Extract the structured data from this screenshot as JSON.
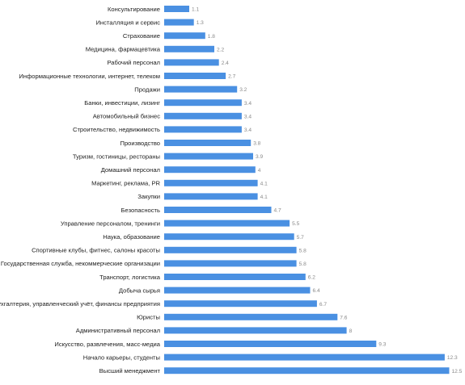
{
  "chart_data": {
    "type": "bar",
    "orientation": "horizontal",
    "bar_color": "#4a90e2",
    "grid": false,
    "categories": [
      "Консультирование",
      "Инсталляция и сервис",
      "Страхование",
      "Медицина, фармацевтика",
      "Рабочий персонал",
      "Информационные технологии, интернет, телеком",
      "Продажи",
      "Банки, инвестиции, лизинг",
      "Автомобильный бизнес",
      "Строительство, недвижимость",
      "Производство",
      "Туризм, гостиницы, рестораны",
      "Домашний персонал",
      "Маркетинг, реклама, PR",
      "Закупки",
      "Безопасность",
      "Управление персоналом, тренинги",
      "Наука, образование",
      "Спортивные клубы, фитнес, салоны красоты",
      "Государственная служба, некоммерческие организации",
      "Транспорт, логистика",
      "Добыча сырья",
      "Бухгалтерия, управленческий учёт, финансы предприятия",
      "Юристы",
      "Административный персонал",
      "Искусство, развлечения, масс-медиа",
      "Начало карьеры, студенты",
      "Высший менеджмент"
    ],
    "values": [
      1.1,
      1.3,
      1.8,
      2.2,
      2.4,
      2.7,
      3.2,
      3.4,
      3.4,
      3.4,
      3.8,
      3.9,
      4,
      4.1,
      4.1,
      4.7,
      5.5,
      5.7,
      5.8,
      5.8,
      6.2,
      6.4,
      6.7,
      7.6,
      8,
      9.3,
      12.3,
      12.5
    ],
    "value_labels": [
      "1.1",
      "1.3",
      "1.8",
      "2.2",
      "2.4",
      "2.7",
      "3.2",
      "3.4",
      "3.4",
      "3.4",
      "3.8",
      "3.9",
      "4",
      "4.1",
      "4.1",
      "4.7",
      "5.5",
      "5.7",
      "5.8",
      "5.8",
      "6.2",
      "6.4",
      "6.7",
      "7.6",
      "8",
      "9.3",
      "12.3",
      "12.5"
    ],
    "xlim": [
      0,
      12.5
    ]
  }
}
